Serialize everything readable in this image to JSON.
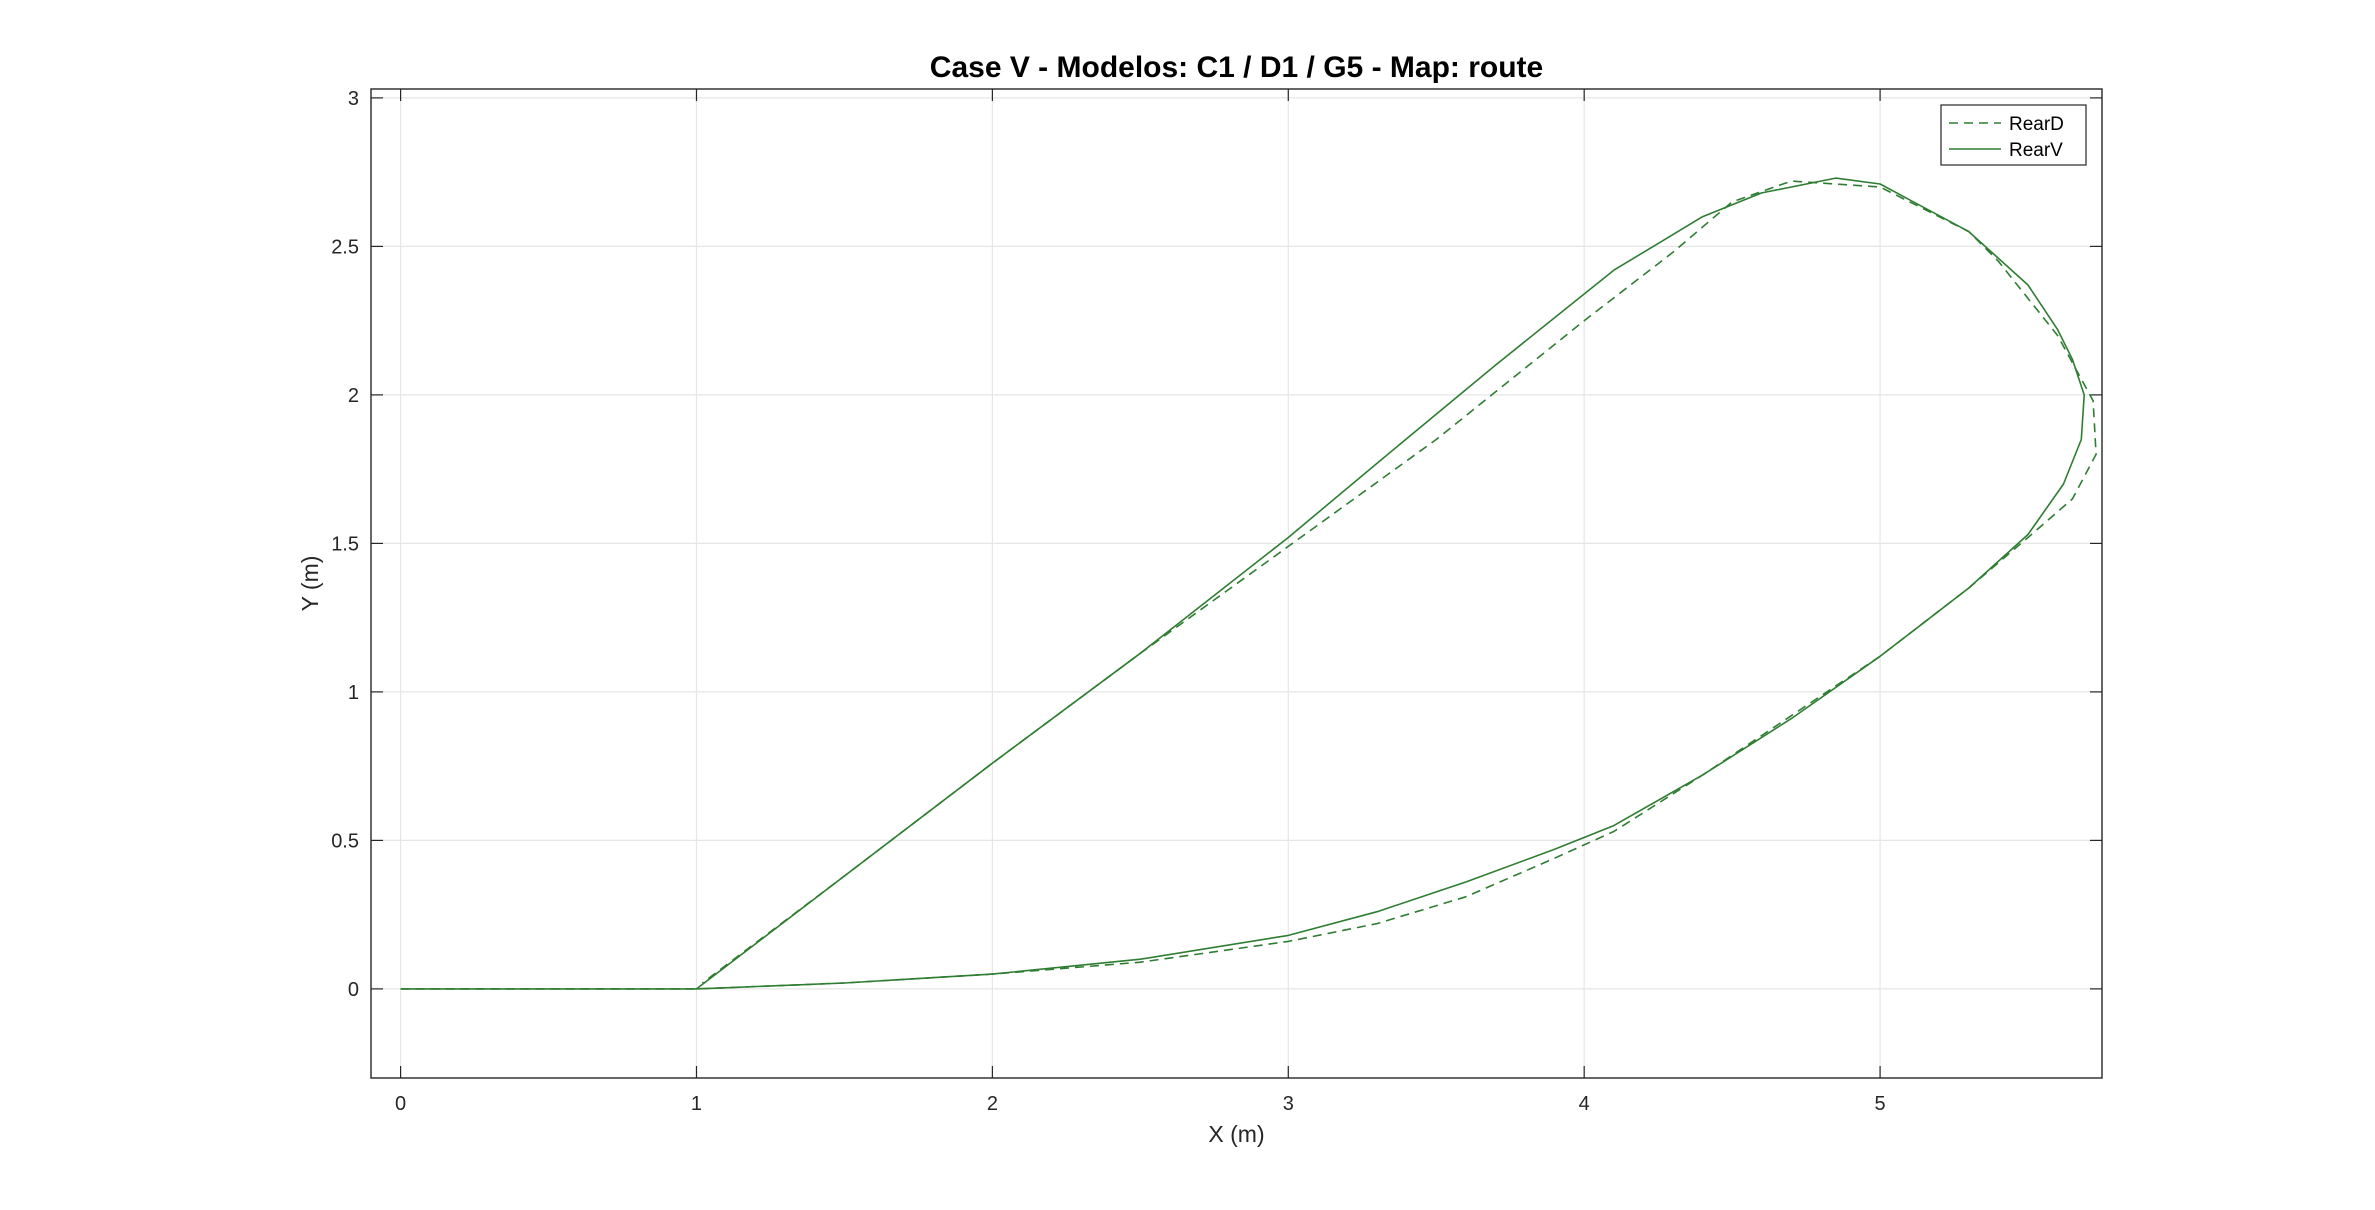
{
  "chart_data": {
    "type": "line",
    "title": "Case V - Modelos: C1 / D1 / G5 - Map: route",
    "xlabel": "X (m)",
    "ylabel": "Y (m)",
    "xlim": [
      -0.1,
      5.75
    ],
    "ylim": [
      -0.3,
      3.03
    ],
    "xticks": [
      "0",
      "1",
      "2",
      "3",
      "4",
      "5"
    ],
    "yticks": [
      "0",
      "0.5",
      "1",
      "1.5",
      "2",
      "2.5",
      "3"
    ],
    "grid": true,
    "legend_position": "top-right",
    "colors": {
      "line": "#2e7d32",
      "axis": "#262626",
      "grid": "#e6e6e6"
    },
    "series": [
      {
        "name": "RearD",
        "style": "dashed",
        "x": [
          0,
          1.0,
          1.5,
          2.0,
          2.5,
          3.0,
          3.3,
          3.6,
          3.9,
          4.1,
          4.4,
          4.7,
          5.0,
          5.3,
          5.5,
          5.65,
          5.73,
          5.72,
          5.6,
          5.4,
          5.3,
          5.0,
          4.7,
          4.5,
          4.3,
          4.0,
          3.5,
          3.0,
          2.5,
          2.0,
          1.5,
          1.02
        ],
        "y": [
          0,
          0.0,
          0.02,
          0.05,
          0.09,
          0.16,
          0.22,
          0.31,
          0.44,
          0.53,
          0.72,
          0.92,
          1.12,
          1.35,
          1.52,
          1.65,
          1.8,
          1.98,
          2.2,
          2.45,
          2.55,
          2.7,
          2.72,
          2.65,
          2.48,
          2.25,
          1.85,
          1.49,
          1.13,
          0.76,
          0.38,
          0.02
        ]
      },
      {
        "name": "RearV",
        "style": "solid",
        "x": [
          0,
          1.0,
          1.5,
          2.0,
          2.5,
          3.0,
          3.3,
          3.6,
          3.9,
          4.1,
          4.4,
          4.7,
          5.0,
          5.3,
          5.5,
          5.62,
          5.68,
          5.69,
          5.65,
          5.6,
          5.5,
          5.3,
          5.0,
          4.85,
          4.6,
          4.4,
          4.1,
          3.7,
          3.3,
          3.0,
          2.5,
          2.0,
          1.5,
          1.0
        ],
        "y": [
          0,
          0.0,
          0.02,
          0.05,
          0.1,
          0.18,
          0.26,
          0.36,
          0.47,
          0.55,
          0.72,
          0.91,
          1.12,
          1.35,
          1.53,
          1.7,
          1.85,
          2.0,
          2.12,
          2.22,
          2.37,
          2.55,
          2.71,
          2.73,
          2.68,
          2.6,
          2.42,
          2.1,
          1.77,
          1.52,
          1.13,
          0.76,
          0.38,
          0.0
        ]
      }
    ]
  }
}
